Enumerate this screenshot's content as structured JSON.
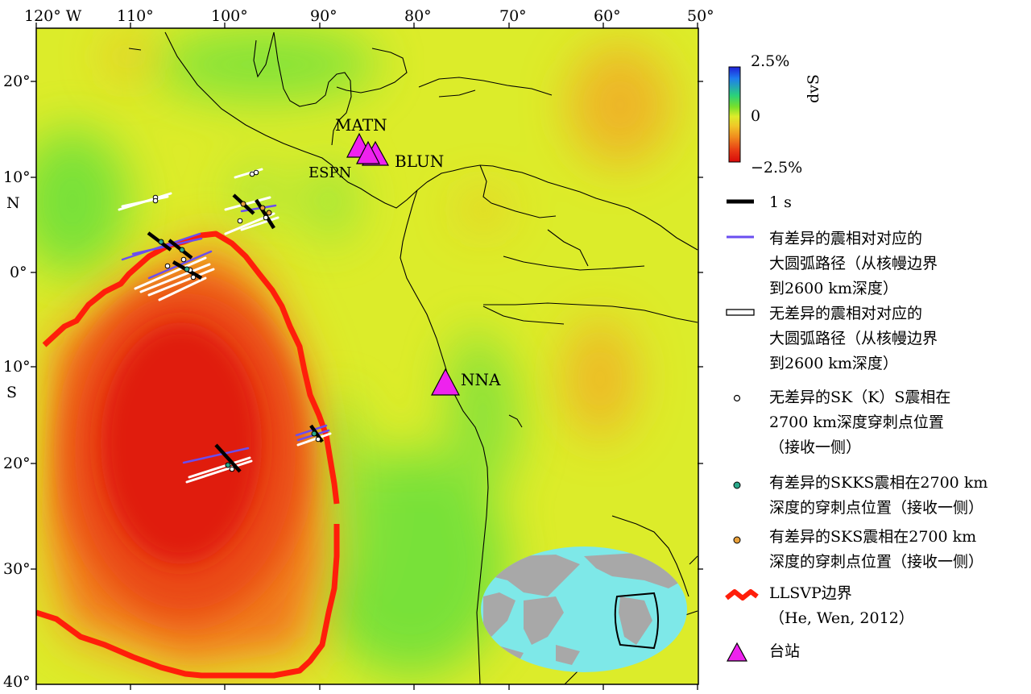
{
  "axes": {
    "lon_ticks": [
      "120° W",
      "110°",
      "100°",
      "90°",
      "80°",
      "70°",
      "60°",
      "50°"
    ],
    "lat_ticks": [
      "20°",
      "10°",
      "0°",
      "10°",
      "20°",
      "30°",
      "40°"
    ],
    "hemisphere_north": "N",
    "hemisphere_south": "S"
  },
  "stations": [
    {
      "name": "MATN"
    },
    {
      "name": "BLUN"
    },
    {
      "name": "ESPN"
    },
    {
      "name": "NNA"
    }
  ],
  "colorbar": {
    "title": "dvS",
    "max": "2.5%",
    "mid": "0",
    "min": "−2.5%",
    "colors": [
      "#2020d8",
      "#1e7cf0",
      "#2ad27a",
      "#78e02a",
      "#dcec2a",
      "#f0c828",
      "#f08a1e",
      "#e83a14",
      "#d80a0a"
    ]
  },
  "legend": {
    "one_second": "1 s",
    "diff_path": [
      "有差异的震相对对应的",
      "大圆弧路径（从核幔边界",
      "到2600 km深度）"
    ],
    "nodiff_path": [
      "无差异的震相对对应的",
      "大圆弧路径（从核幔边界",
      "到2600 km深度）"
    ],
    "nodiff_pierce": [
      "无差异的SK（K）S震相在",
      "2700 km深度穿刺点位置",
      "（接收一侧）"
    ],
    "skks_pierce": [
      "有差异的SKKS震相在2700 km",
      "深度的穿刺点位置（接收一侧）"
    ],
    "sks_pierce": [
      "有差异的SKS震相在2700 km",
      "深度的穿刺点位置（接收一侧）"
    ],
    "llsvp": [
      "LLSVP边界",
      "（He, Wen, 2012）"
    ],
    "station": "台站"
  },
  "colors": {
    "background_field": "#dcec2a",
    "llsvp_line": "#ff1e0a",
    "station_fill": "#ee22ee",
    "diff_path": "#6a4ef0",
    "skks_dot": "#2aa88a",
    "sks_dot": "#e8a03a",
    "inset_ocean": "#7ee8e8",
    "inset_land": "#a8a8a8"
  }
}
